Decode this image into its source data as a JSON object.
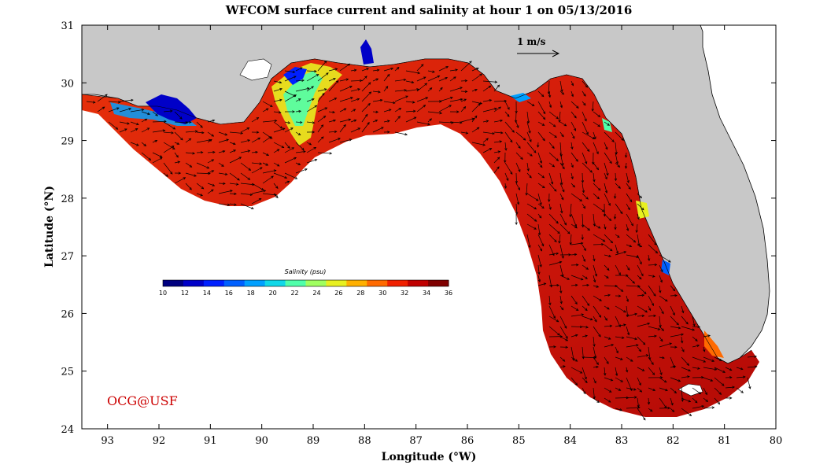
{
  "title": "WFCOM surface current and salinity at hour 1 on 05/13/2016",
  "xlabel": "Longitude (°W)",
  "ylabel": "Latitude (°N)",
  "x_ticks": [
    "93",
    "92",
    "91",
    "90",
    "89",
    "88",
    "87",
    "86",
    "85",
    "84",
    "83",
    "82",
    "81",
    "80"
  ],
  "y_ticks": [
    "31",
    "30",
    "29",
    "28",
    "27",
    "26",
    "25",
    "24"
  ],
  "lon_range": [
    93.5,
    80
  ],
  "lat_range": [
    24,
    31
  ],
  "colorbar": {
    "title": "Salinity (psu)",
    "ticks": [
      "10",
      "12",
      "14",
      "16",
      "18",
      "20",
      "22",
      "24",
      "26",
      "28",
      "30",
      "32",
      "34",
      "36"
    ],
    "colors": [
      "#00007f",
      "#0000c8",
      "#0020ff",
      "#0060ff",
      "#00a0ff",
      "#10d8e8",
      "#50ffaa",
      "#a0ff60",
      "#e8f020",
      "#ffb000",
      "#ff6a00",
      "#f02000",
      "#c00000",
      "#800000"
    ]
  },
  "scale_vector": {
    "label": "1 m/s",
    "magnitude_m_s": 1
  },
  "credit": "OCG@USF",
  "colors": {
    "land": "#c8c8c8",
    "ocean_outside": "#ffffff",
    "sea": "#d61e0a",
    "credit": "#cc0000"
  }
}
